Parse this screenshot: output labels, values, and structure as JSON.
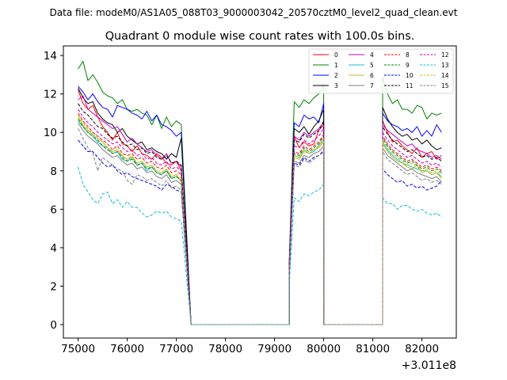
{
  "header": {
    "text": "Data file: modeM0/AS1A05_088T03_9000003042_20570cztM0_level2_quad_clean.evt"
  },
  "chart_data": {
    "type": "line",
    "title": "Quadrant 0 module wise count rates with 100.0s bins.",
    "xlabel": "",
    "ylabel": "",
    "x_offset_label": "+3.011e8",
    "xlim": [
      74700,
      82700
    ],
    "ylim": [
      -0.7,
      14.5
    ],
    "xticks": [
      75000,
      76000,
      77000,
      78000,
      79000,
      80000,
      81000,
      82000
    ],
    "xtick_labels": [
      "75000",
      "76000",
      "77000",
      "78000",
      "79000",
      "80000",
      "81000",
      "82000"
    ],
    "yticks": [
      0,
      2,
      4,
      6,
      8,
      10,
      12,
      14
    ],
    "ytick_labels": [
      "0",
      "2",
      "4",
      "6",
      "8",
      "10",
      "12",
      "14"
    ],
    "legend_position": "top-right",
    "legend_columns": 4,
    "segments": [
      {
        "start": 75000,
        "end": 77300,
        "step": 100
      },
      {
        "start": 79300,
        "end": 80000,
        "step": 100
      },
      {
        "start": 81200,
        "end": 82400,
        "step": 100
      }
    ],
    "gaps": [
      {
        "from": 77300,
        "to": 79300
      },
      {
        "from": 80000,
        "to": 81200
      }
    ],
    "series": [
      {
        "name": "0",
        "color": "#ff0000",
        "dash": "solid",
        "seg1": [
          12.2,
          11.5,
          11.2,
          11.4,
          10.8,
          10.3,
          10.0,
          9.6,
          10.0,
          9.4,
          9.3,
          9.0,
          9.3,
          8.9,
          8.8,
          8.6,
          8.9,
          8.7,
          8.4,
          8.3,
          8.5,
          8.0
        ],
        "seg2": [
          3.0,
          9.8,
          9.2,
          9.5,
          9.3,
          9.4,
          10.1,
          10.4
        ],
        "seg3": [
          10.6,
          10.0,
          9.5,
          9.6,
          9.3,
          9.1,
          8.9,
          9.2,
          8.7,
          8.9,
          9.0,
          8.6,
          8.8
        ]
      },
      {
        "name": "1",
        "color": "#008000",
        "dash": "solid",
        "seg1": [
          13.3,
          13.7,
          12.7,
          13.0,
          12.6,
          12.1,
          11.9,
          11.8,
          11.5,
          11.7,
          11.2,
          11.1,
          11.2,
          11.0,
          10.9,
          10.4,
          10.9,
          10.2,
          10.8,
          10.3,
          10.6,
          10.4
        ],
        "seg2": [
          3.3,
          11.6,
          11.3,
          11.7,
          11.5,
          11.8,
          12.0,
          12.5
        ],
        "seg3": [
          12.9,
          12.0,
          11.5,
          11.7,
          11.2,
          11.2,
          11.0,
          11.4,
          11.3,
          10.7,
          11.0,
          10.9,
          11.0
        ]
      },
      {
        "name": "2",
        "color": "#0000ff",
        "dash": "solid",
        "seg1": [
          12.4,
          12.1,
          11.7,
          12.0,
          11.6,
          11.3,
          11.2,
          10.8,
          11.4,
          11.3,
          11.2,
          11.0,
          10.9,
          10.7,
          11.1,
          10.6,
          10.9,
          10.4,
          10.3,
          10.1,
          9.8,
          10.0
        ],
        "seg2": [
          3.3,
          10.5,
          10.3,
          10.9,
          10.7,
          10.8,
          10.5,
          11.5
        ],
        "seg3": [
          11.0,
          10.6,
          10.4,
          10.3,
          10.1,
          10.2,
          10.0,
          10.3,
          9.8,
          10.1,
          9.8,
          10.4,
          10.0
        ]
      },
      {
        "name": "3",
        "color": "#000000",
        "dash": "solid",
        "seg1": [
          12.3,
          11.8,
          11.5,
          11.6,
          11.0,
          10.7,
          10.5,
          10.4,
          10.0,
          10.2,
          9.8,
          9.6,
          9.4,
          9.5,
          9.1,
          9.2,
          9.0,
          8.9,
          8.6,
          8.9,
          8.7,
          9.7
        ],
        "seg2": [
          3.1,
          10.2,
          10.0,
          10.3,
          9.9,
          10.3,
          10.6,
          11.2
        ],
        "seg3": [
          11.3,
          10.7,
          10.3,
          10.0,
          9.8,
          9.9,
          9.6,
          9.7,
          9.4,
          9.6,
          9.3,
          9.1,
          9.2
        ]
      },
      {
        "name": "4",
        "color": "#bf00bf",
        "dash": "solid",
        "seg1": [
          11.7,
          11.9,
          11.2,
          11.0,
          10.8,
          10.6,
          10.4,
          10.2,
          10.3,
          9.9,
          9.5,
          9.7,
          9.4,
          9.2,
          9.0,
          9.1,
          8.8,
          8.6,
          8.9,
          8.4,
          8.5,
          8.2
        ],
        "seg2": [
          3.1,
          9.8,
          9.6,
          10.0,
          9.8,
          10.0,
          10.2,
          10.5
        ],
        "seg3": [
          10.4,
          10.1,
          9.9,
          9.7,
          9.5,
          9.3,
          9.4,
          9.1,
          9.0,
          8.9,
          8.7,
          8.8,
          8.6
        ]
      },
      {
        "name": "5",
        "color": "#17becf",
        "dash": "solid",
        "seg1": [
          10.6,
          10.3,
          10.0,
          9.8,
          9.5,
          9.3,
          9.2,
          8.9,
          9.0,
          8.6,
          8.5,
          8.7,
          8.3,
          8.4,
          8.0,
          8.2,
          7.9,
          7.8,
          8.0,
          7.6,
          7.7,
          7.5
        ],
        "seg2": [
          2.8,
          8.8,
          8.7,
          9.1,
          8.9,
          9.0,
          9.3,
          9.6
        ],
        "seg3": [
          9.5,
          9.1,
          8.8,
          8.6,
          8.4,
          8.3,
          8.2,
          8.1,
          8.0,
          8.0,
          7.8,
          7.9,
          7.7
        ]
      },
      {
        "name": "6",
        "color": "#bcbd22",
        "dash": "solid",
        "seg1": [
          10.8,
          10.4,
          10.1,
          9.9,
          9.7,
          9.5,
          9.2,
          9.0,
          9.1,
          8.8,
          8.6,
          8.8,
          8.4,
          8.5,
          8.2,
          8.3,
          8.0,
          7.9,
          8.1,
          7.7,
          7.8,
          7.4
        ],
        "seg2": [
          2.9,
          8.7,
          8.6,
          9.0,
          8.9,
          9.1,
          9.2,
          9.5
        ],
        "seg3": [
          9.4,
          9.0,
          8.7,
          8.5,
          8.4,
          8.2,
          8.1,
          8.3,
          7.9,
          8.0,
          7.8,
          7.9,
          7.6
        ]
      },
      {
        "name": "7",
        "color": "#7f7f7f",
        "dash": "solid",
        "seg1": [
          10.5,
          10.1,
          9.8,
          9.6,
          9.4,
          9.1,
          8.9,
          8.7,
          8.8,
          8.5,
          8.3,
          8.4,
          8.1,
          8.2,
          7.9,
          8.0,
          7.7,
          7.6,
          7.8,
          7.4,
          7.5,
          7.3
        ],
        "seg2": [
          2.8,
          8.5,
          8.4,
          8.8,
          8.7,
          8.9,
          9.0,
          9.3
        ],
        "seg3": [
          9.2,
          8.8,
          8.6,
          8.4,
          8.2,
          8.0,
          8.1,
          7.9,
          7.8,
          7.7,
          7.6,
          7.7,
          7.4
        ]
      },
      {
        "name": "8",
        "color": "#ff0000",
        "dash": "dashed",
        "seg1": [
          11.0,
          10.6,
          10.3,
          10.0,
          9.8,
          9.6,
          9.4,
          9.1,
          9.3,
          8.9,
          8.8,
          8.9,
          8.6,
          8.7,
          8.4,
          8.5,
          8.2,
          8.1,
          8.3,
          7.9,
          8.0,
          7.8
        ],
        "seg2": [
          2.9,
          9.0,
          8.9,
          9.3,
          9.1,
          9.3,
          9.5,
          9.9
        ],
        "seg3": [
          9.8,
          9.4,
          9.1,
          8.9,
          8.7,
          8.5,
          8.6,
          8.4,
          8.2,
          8.3,
          8.1,
          8.2,
          8.0
        ]
      },
      {
        "name": "9",
        "color": "#008000",
        "dash": "dashed",
        "seg1": [
          10.7,
          10.3,
          10.0,
          9.8,
          9.6,
          9.3,
          9.1,
          8.9,
          9.0,
          8.7,
          8.5,
          8.6,
          8.3,
          8.4,
          8.1,
          8.2,
          7.9,
          7.8,
          8.0,
          7.6,
          7.7,
          7.5
        ],
        "seg2": [
          2.8,
          8.9,
          8.8,
          9.2,
          9.0,
          9.2,
          9.4,
          9.8
        ],
        "seg3": [
          9.7,
          9.3,
          9.0,
          8.8,
          8.6,
          8.4,
          8.5,
          8.3,
          8.1,
          8.2,
          8.0,
          8.1,
          7.9
        ]
      },
      {
        "name": "10",
        "color": "#0000ff",
        "dash": "dashed",
        "seg1": [
          9.6,
          9.3,
          9.0,
          9.0,
          8.7,
          8.4,
          8.2,
          8.3,
          8.0,
          7.8,
          7.9,
          7.7,
          7.6,
          7.5,
          7.4,
          7.3,
          7.2,
          7.0,
          7.3,
          7.2,
          7.0,
          6.9
        ],
        "seg2": [
          2.6,
          8.4,
          8.3,
          8.7,
          8.5,
          8.7,
          8.8,
          9.0
        ],
        "seg3": [
          8.1,
          7.8,
          7.6,
          7.4,
          7.5,
          7.2,
          7.3,
          7.1,
          7.2,
          7.0,
          7.1,
          7.2,
          7.5
        ]
      },
      {
        "name": "11",
        "color": "#000000",
        "dash": "dashed",
        "seg1": [
          11.5,
          11.1,
          10.9,
          10.6,
          10.3,
          10.2,
          9.9,
          9.7,
          9.8,
          9.5,
          9.3,
          9.4,
          9.1,
          9.2,
          8.9,
          9.0,
          8.7,
          8.6,
          8.8,
          8.4,
          8.5,
          8.3
        ],
        "seg2": [
          3.0,
          9.6,
          9.5,
          9.9,
          9.7,
          9.9,
          10.1,
          10.6
        ],
        "seg3": [
          10.3,
          9.9,
          9.6,
          9.4,
          9.2,
          9.0,
          9.1,
          8.9,
          8.7,
          8.8,
          8.6,
          8.7,
          8.5
        ]
      },
      {
        "name": "12",
        "color": "#bf00bf",
        "dash": "dashed",
        "seg1": [
          11.2,
          10.8,
          10.5,
          10.3,
          10.0,
          9.8,
          9.6,
          9.4,
          9.5,
          9.2,
          9.0,
          9.1,
          8.8,
          8.9,
          8.6,
          8.7,
          8.4,
          8.3,
          8.5,
          8.1,
          8.2,
          8.0
        ],
        "seg2": [
          2.9,
          9.3,
          9.2,
          9.6,
          9.4,
          9.6,
          9.8,
          10.2
        ],
        "seg3": [
          10.0,
          9.6,
          9.3,
          9.1,
          8.9,
          8.7,
          8.8,
          8.6,
          8.4,
          8.5,
          8.3,
          8.4,
          8.2
        ]
      },
      {
        "name": "13",
        "color": "#17becf",
        "dash": "dashed",
        "seg1": [
          8.2,
          7.3,
          6.9,
          6.5,
          6.3,
          6.8,
          6.9,
          6.3,
          6.5,
          6.1,
          6.4,
          6.1,
          6.1,
          5.8,
          5.6,
          5.7,
          5.9,
          5.8,
          5.9,
          5.6,
          5.5,
          5.4
        ],
        "seg2": [
          2.1,
          6.6,
          6.4,
          6.8,
          6.7,
          6.9,
          7.0,
          7.3
        ],
        "seg3": [
          6.6,
          6.3,
          6.3,
          6.0,
          6.2,
          6.2,
          6.0,
          5.9,
          6.0,
          5.8,
          5.7,
          5.8,
          5.6
        ]
      },
      {
        "name": "14",
        "color": "#bcbd22",
        "dash": "dashed",
        "seg1": [
          10.9,
          10.5,
          10.2,
          9.9,
          9.7,
          9.5,
          9.2,
          9.0,
          9.1,
          8.8,
          8.6,
          8.7,
          8.4,
          8.5,
          8.2,
          8.3,
          8.0,
          7.9,
          8.1,
          7.7,
          7.8,
          7.6
        ],
        "seg2": [
          2.8,
          8.8,
          8.7,
          9.1,
          8.9,
          9.1,
          9.3,
          9.7
        ],
        "seg3": [
          9.6,
          9.2,
          8.9,
          8.7,
          8.5,
          8.3,
          8.4,
          8.2,
          8.0,
          8.1,
          7.9,
          8.0,
          7.8
        ]
      },
      {
        "name": "15",
        "color": "#7f7f7f",
        "dash": "dashed",
        "seg1": [
          10.2,
          9.7,
          9.2,
          8.9,
          8.0,
          8.7,
          8.5,
          8.3,
          8.1,
          8.0,
          7.5,
          7.3,
          7.8,
          7.7,
          7.5,
          7.6,
          7.4,
          7.2,
          7.5,
          7.1,
          7.2,
          7.0
        ],
        "seg2": [
          2.7,
          8.3,
          8.2,
          8.6,
          8.4,
          8.6,
          8.8,
          9.1
        ],
        "seg3": [
          9.0,
          8.6,
          8.4,
          8.2,
          8.0,
          7.8,
          7.9,
          7.7,
          7.5,
          7.6,
          7.4,
          7.5,
          7.3
        ]
      }
    ]
  }
}
